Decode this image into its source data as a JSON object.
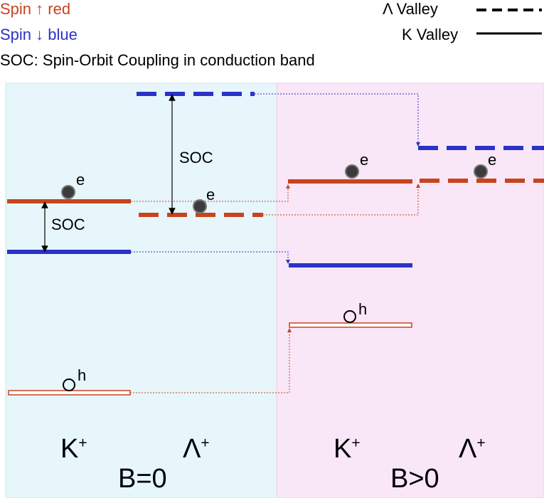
{
  "legend": {
    "spin_up": "Spin ↑  red",
    "spin_down": "Spin ↓  blue",
    "soc_note": "SOC: Spin-Orbit Coupling in conduction band",
    "lambda_valley": "Λ Valley",
    "k_valley": "K Valley"
  },
  "panels": {
    "left": {
      "label": "B=0",
      "valley_k": "K",
      "valley_lambda": "Λ",
      "superscript": "+",
      "soc_k": "SOC",
      "soc_lambda": "SOC"
    },
    "right": {
      "label": "B>0",
      "valley_k": "K",
      "valley_lambda": "Λ",
      "superscript": "+"
    }
  },
  "carriers": {
    "electron": "e",
    "hole": "h"
  },
  "colors": {
    "spin_up": "#c8441e",
    "spin_down": "#2b32c9",
    "left_bg": "#e6f6fb",
    "right_bg": "#f9e6f7"
  }
}
